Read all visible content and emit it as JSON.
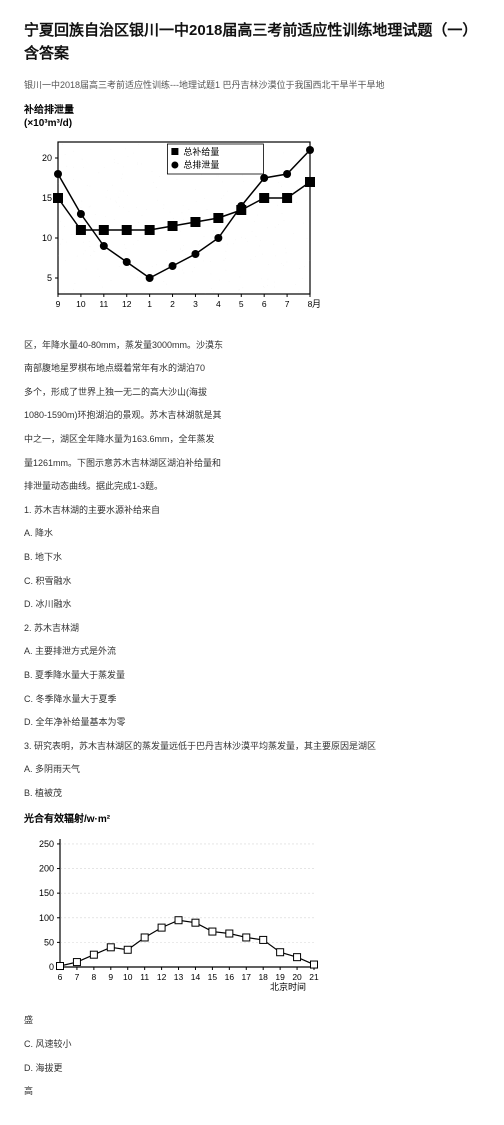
{
  "title": "宁夏回族自治区银川一中2018届高三考前适应性训练地理试题（一）含答案",
  "subtitle": "银川一中2018届高三考前适应性训练---地理试题1 巴丹吉林沙漠位于我国西北干旱半干旱地",
  "chart1": {
    "label_line1": "补给排泄量",
    "label_line2": "(×10³m³/d)",
    "legend": {
      "series_a": "总补给量",
      "series_b": "总排泄量"
    },
    "xlabel": "月",
    "x_ticks": [
      "9",
      "10",
      "11",
      "12",
      "1",
      "2",
      "3",
      "4",
      "5",
      "6",
      "7",
      "8"
    ],
    "y_ticks": [
      "5",
      "10",
      "15",
      "20"
    ],
    "series_a_values": [
      15,
      11,
      11,
      11,
      11,
      11.5,
      12,
      12.5,
      13.5,
      15,
      15,
      17
    ],
    "series_b_values": [
      18,
      13,
      9,
      7,
      5,
      6.5,
      8,
      10,
      14,
      17.5,
      18,
      21
    ],
    "colors": {
      "series_a_marker": "#000000",
      "series_b_marker": "#000000",
      "line": "#000000",
      "axis": "#000000",
      "grid": "#aaaaaa",
      "bg": "#ffffff"
    },
    "ylim": [
      3,
      22
    ],
    "marker_size_a": 5,
    "marker_size_b": 4,
    "line_width": 1.5
  },
  "paragraphs": [
    "区，年降水量40-80mm，蒸发量3000mm。沙漠东",
    "南部腹地星罗棋布地点缀着常年有水的湖泊70",
    "多个，形成了世界上独一无二的高大沙山(海拔",
    "1080-1590m)环抱湖泊的景观。苏木吉林湖就是其",
    "中之一，湖区全年降水量为163.6mm，全年蒸发",
    "量1261mm。下图示意苏木吉林湖区湖泊补给量和",
    "排泄量动态曲线。据此完成1-3题。",
    "1. 苏木吉林湖的主要水源补给来自",
    "A. 降水",
    "B. 地下水",
    "C. 积雪融水",
    "D. 冰川融水",
    "2. 苏木吉林湖",
    "A. 主要排泄方式是外流",
    "B. 夏季降水量大于蒸发量",
    "C. 冬季降水量大于夏季",
    "D. 全年净补给量基本为零",
    "3. 研究表明，苏木吉林湖区的蒸发量远低于巴丹吉林沙漠平均蒸发量，其主要原因是湖区",
    "A. 多阴雨天气",
    "B. 植被茂"
  ],
  "chart2": {
    "label": "光合有效辐射/w·m²",
    "xlabel": "北京时间",
    "x_ticks": [
      "6",
      "7",
      "8",
      "9",
      "10",
      "11",
      "12",
      "13",
      "14",
      "15",
      "16",
      "17",
      "18",
      "19",
      "20",
      "21"
    ],
    "y_ticks": [
      "0",
      "50",
      "100",
      "150",
      "200",
      "250"
    ],
    "values": [
      2,
      10,
      25,
      40,
      35,
      60,
      80,
      95,
      90,
      72,
      68,
      60,
      55,
      30,
      20,
      5
    ],
    "colors": {
      "marker_fill": "#ffffff",
      "marker_stroke": "#000000",
      "line": "#000000",
      "axis": "#000000",
      "grid": "#888888",
      "bg": "#ffffff"
    },
    "ylim": [
      0,
      260
    ],
    "marker_size": 3.5,
    "line_width": 1.2
  },
  "tail_paragraphs": [
    "盛",
    "C. 风速较小",
    "D. 海拔更",
    "高"
  ]
}
